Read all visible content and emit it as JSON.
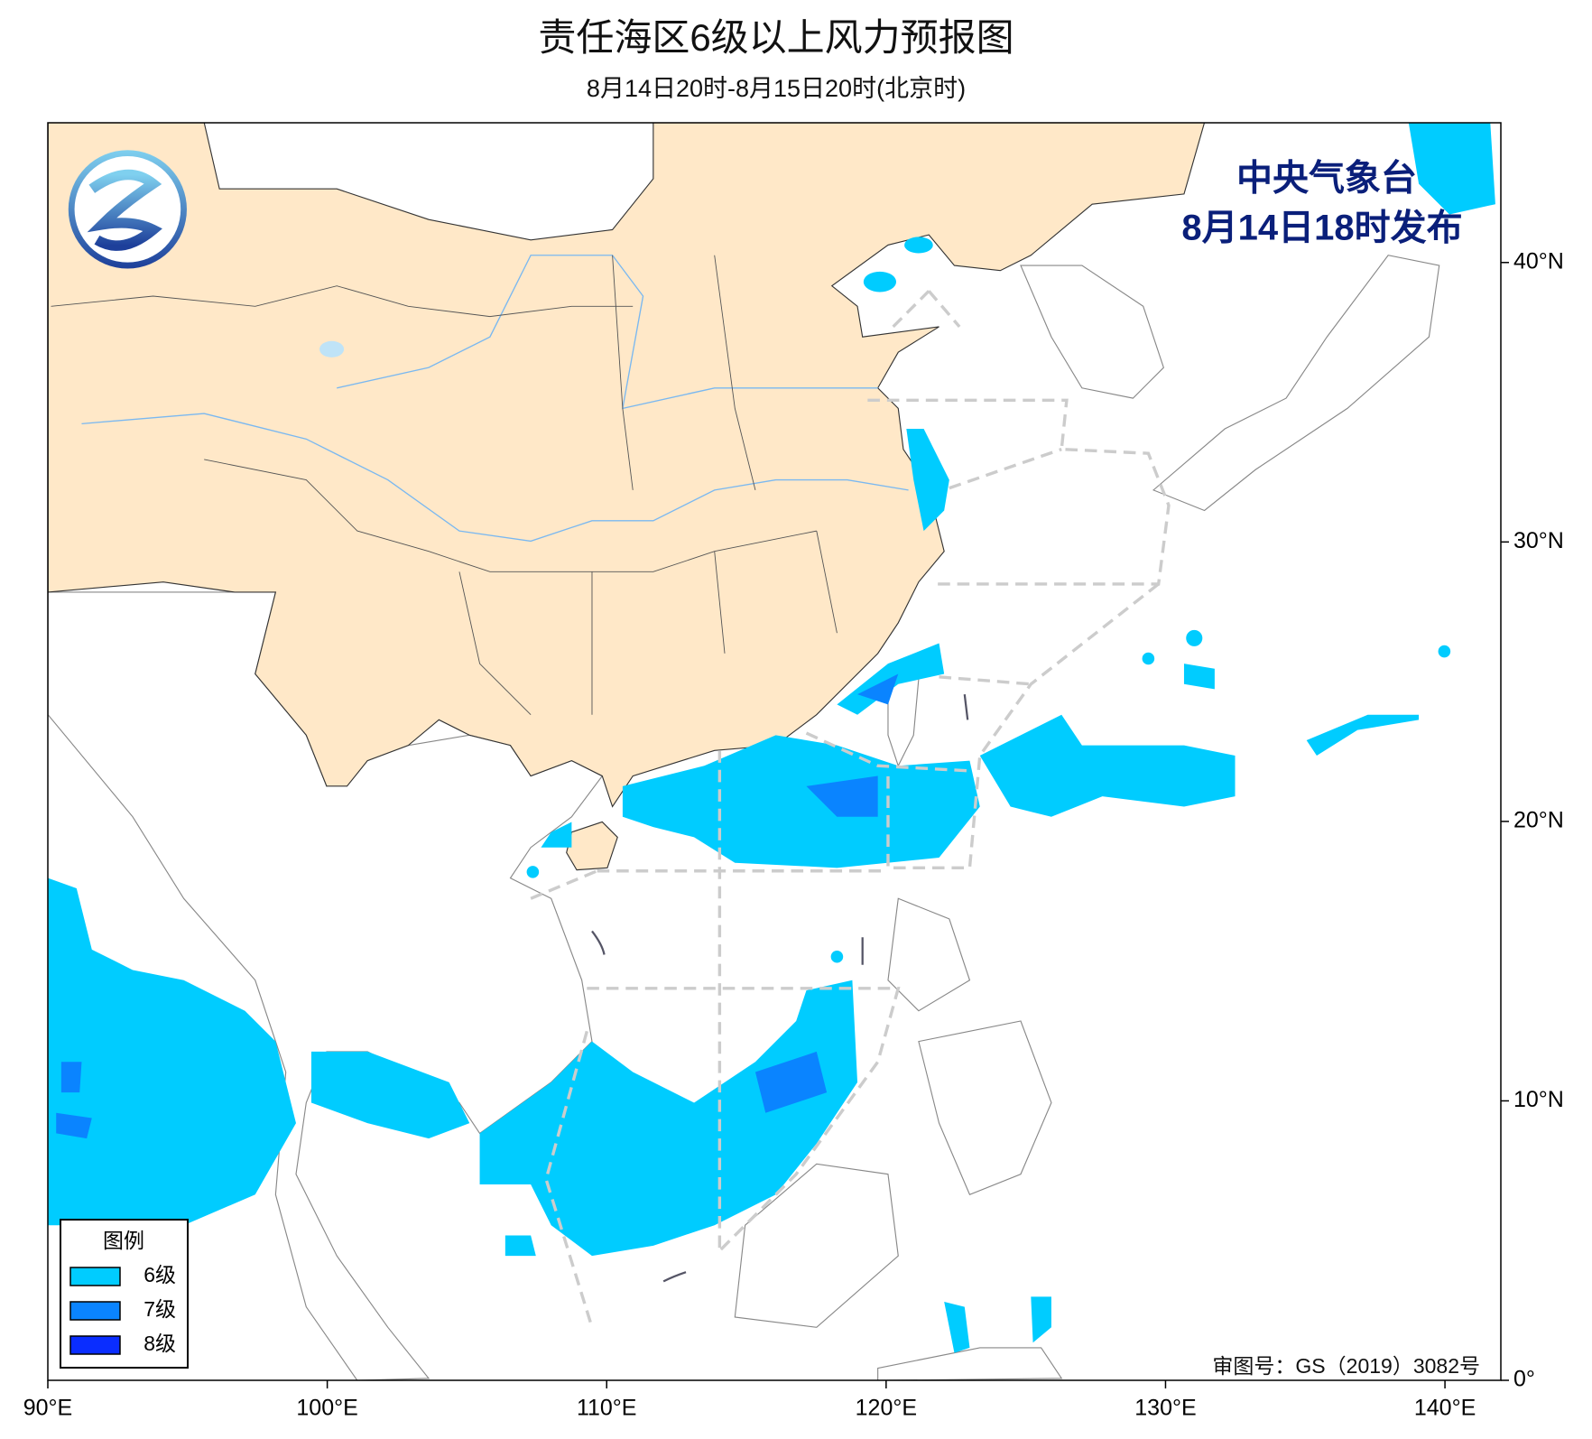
{
  "header": {
    "title": "责任海区6级以上风力预报图",
    "subtitle": "8月14日20时-8月15日20时(北京时)"
  },
  "issuer": {
    "name": "中央气象台",
    "issued": "8月14日18时发布"
  },
  "legend": {
    "title": "图例",
    "items": [
      {
        "label": "6级",
        "color": "#00ccff"
      },
      {
        "label": "7级",
        "color": "#0a84ff"
      },
      {
        "label": "8级",
        "color": "#0a2dff"
      }
    ]
  },
  "map": {
    "xlim": [
      90,
      142
    ],
    "ylim": [
      0,
      45
    ],
    "xticks": [
      {
        "value": 90,
        "label": "90°E"
      },
      {
        "value": 100,
        "label": "100°E"
      },
      {
        "value": 110,
        "label": "110°E"
      },
      {
        "value": 120,
        "label": "120°E"
      },
      {
        "value": 130,
        "label": "130°E"
      },
      {
        "value": 140,
        "label": "140°E"
      }
    ],
    "yticks": [
      {
        "value": 0,
        "label": "0°"
      },
      {
        "value": 10,
        "label": "10°N"
      },
      {
        "value": 20,
        "label": "20°N"
      },
      {
        "value": 30,
        "label": "30°N"
      },
      {
        "value": 40,
        "label": "40°N"
      }
    ]
  },
  "footer": {
    "approval": "审图号：GS（2019）3082号"
  }
}
